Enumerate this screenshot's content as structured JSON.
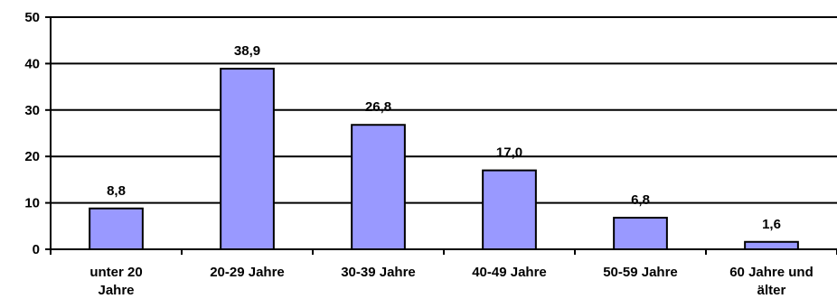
{
  "chart_data": {
    "type": "bar",
    "categories": [
      [
        "unter 20",
        "Jahre"
      ],
      [
        "20-29 Jahre"
      ],
      [
        "30-39 Jahre"
      ],
      [
        "40-49 Jahre"
      ],
      [
        "50-59 Jahre"
      ],
      [
        "60 Jahre und",
        "älter"
      ]
    ],
    "values": [
      8.8,
      38.9,
      26.8,
      17.0,
      6.8,
      1.6
    ],
    "data_labels": [
      "8,8",
      "38,9",
      "26,8",
      "17,0",
      "6,8",
      "1,6"
    ],
    "yticks": [
      "0",
      "10",
      "20",
      "30",
      "40",
      "50"
    ],
    "ylim": [
      0,
      50
    ],
    "grid": true,
    "legend": "none",
    "bar_color": "#9999ff",
    "bar_edge_color": "#000000",
    "grid_color": "#000000"
  }
}
